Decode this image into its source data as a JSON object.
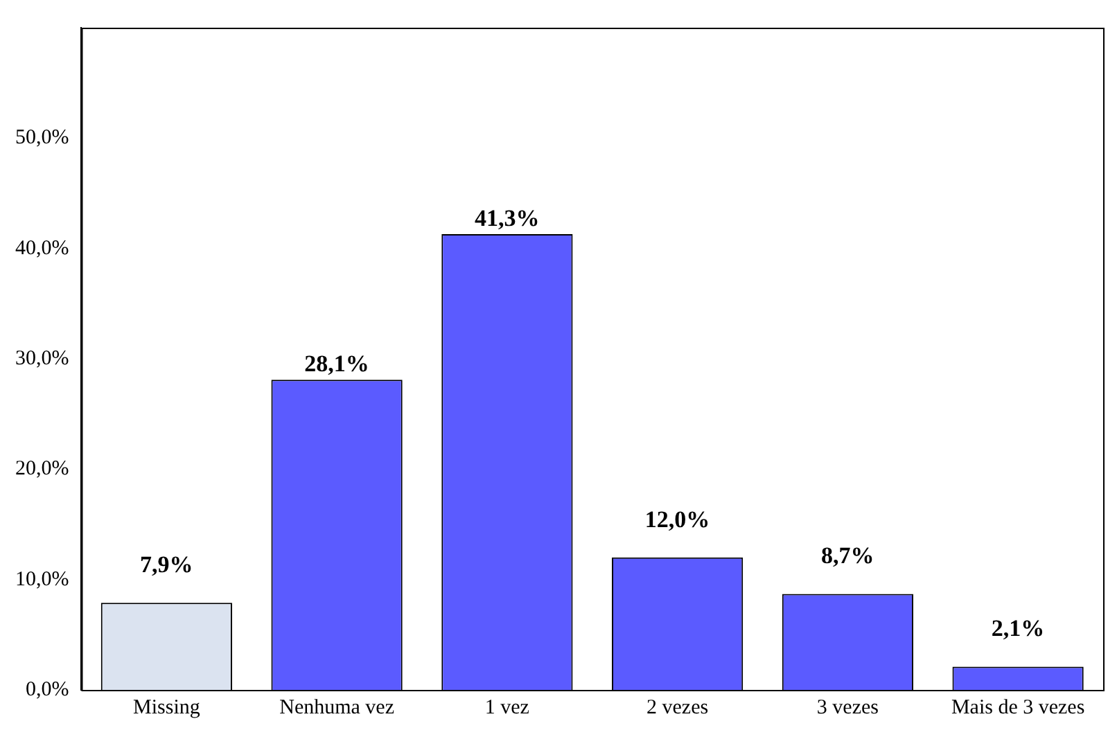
{
  "chart_data": {
    "type": "bar",
    "categories": [
      "Missing",
      "Nenhuma vez",
      "1 vez",
      "2 vezes",
      "3 vezes",
      "Mais de 3 vezes"
    ],
    "values": [
      7.9,
      28.1,
      41.3,
      12.0,
      8.7,
      2.1
    ],
    "colors": [
      "#dbe3f0",
      "#5b5bff",
      "#5b5bff",
      "#5b5bff",
      "#5b5bff",
      "#5b5bff"
    ],
    "value_labels": [
      "7,9%",
      "28,1%",
      "41,3%",
      "12,0%",
      "8,7%",
      "2,1%"
    ],
    "ylim": [
      0,
      60
    ],
    "yticks": [
      {
        "value": 0,
        "label": "0,0%"
      },
      {
        "value": 10,
        "label": "10,0%"
      },
      {
        "value": 20,
        "label": "20,0%"
      },
      {
        "value": 30,
        "label": "30,0%"
      },
      {
        "value": 40,
        "label": "40,0%"
      },
      {
        "value": 50,
        "label": "50,0%"
      }
    ],
    "grid": false,
    "legend": false
  }
}
